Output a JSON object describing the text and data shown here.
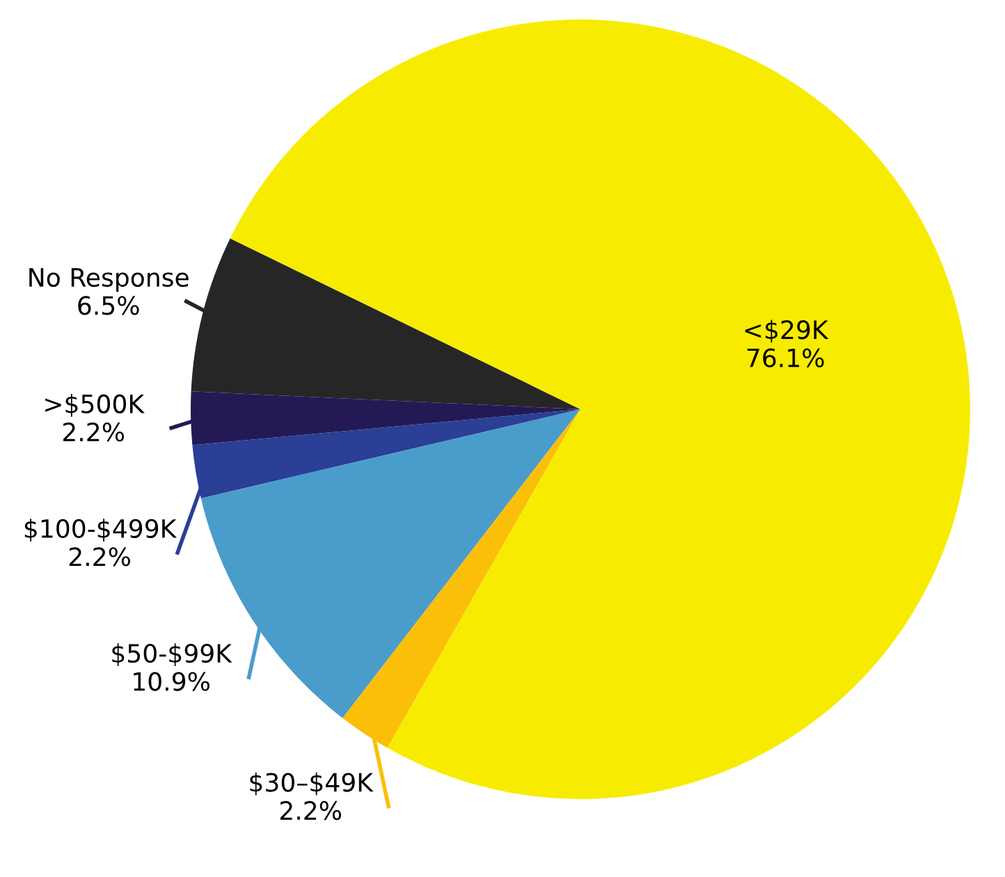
{
  "chart_data": {
    "type": "pie",
    "categories": [
      "No Response",
      ">$500K",
      "$100-$499K",
      "$50-$99K",
      "$30–$49K",
      "<$29K"
    ],
    "values": [
      6.5,
      2.2,
      2.2,
      10.9,
      2.2,
      76.1
    ],
    "colors": [
      "#262626",
      "#231a55",
      "#2a3f95",
      "#4a9ccb",
      "#fbbf0a",
      "#f7ec00"
    ],
    "value_labels": [
      "6.5%",
      "2.2%",
      "2.2%",
      "10.9%",
      "2.2%",
      "76.1%"
    ]
  }
}
